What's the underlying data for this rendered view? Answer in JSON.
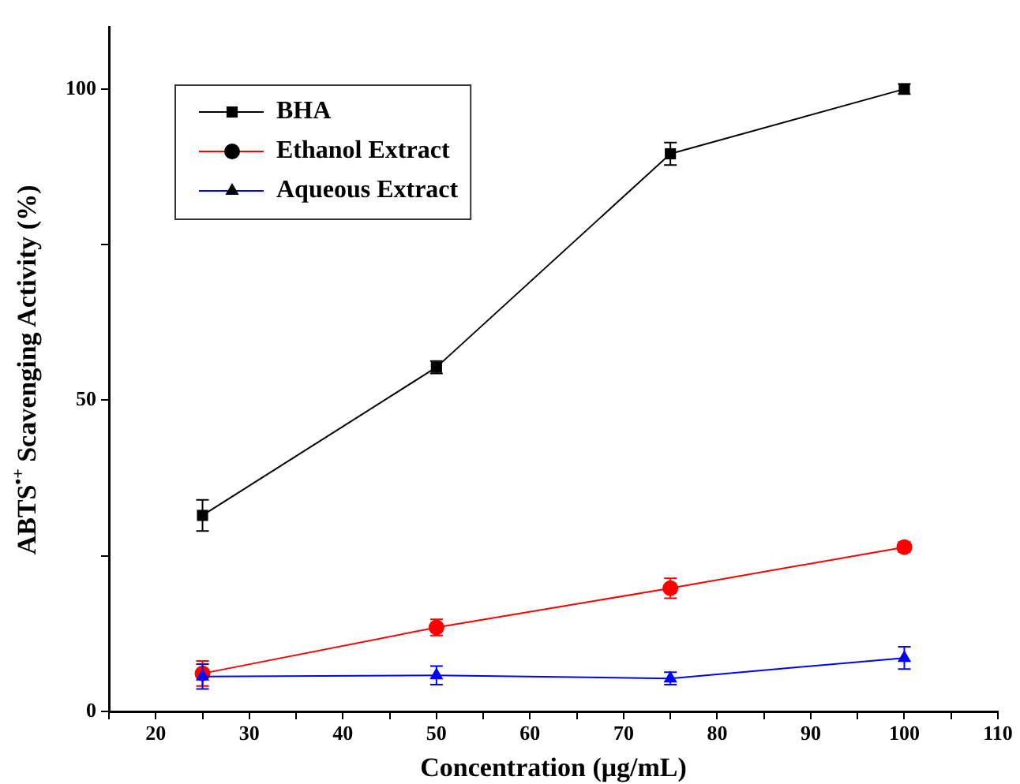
{
  "chart_data": {
    "type": "line",
    "xlabel": "Concentration (μg/mL)",
    "ylabel": "ABTS$^{•+}$ Scavenging Activity (%)",
    "x": [
      25,
      50,
      75,
      100
    ],
    "series": [
      {
        "name": "BHA",
        "color": "#000000",
        "marker": "square",
        "values": [
          31.5,
          55.3,
          89.6,
          100
        ],
        "errors": [
          2.5,
          1,
          1.8,
          0.8
        ]
      },
      {
        "name": "Ethanol Extract",
        "color": "#ff0000",
        "marker": "circle",
        "values": [
          6.1,
          13.5,
          19.8,
          26.4
        ],
        "errors": [
          2,
          1.3,
          1.6,
          0.8
        ]
      },
      {
        "name": "Aqueous Extract",
        "color": "#0000ff",
        "marker": "triangle",
        "values": [
          5.6,
          5.8,
          5.3,
          8.6
        ],
        "errors": [
          2,
          1.5,
          1,
          1.8
        ]
      }
    ],
    "xlim": [
      15,
      110
    ],
    "xticks": [
      {
        "value": 15,
        "label": null
      },
      20,
      {
        "value": 25,
        "label": null
      },
      30,
      {
        "value": 35,
        "label": null
      },
      40,
      {
        "value": 45,
        "label": null
      },
      50,
      {
        "value": 55,
        "label": null
      },
      60,
      {
        "value": 65,
        "label": null
      },
      70,
      {
        "value": 75,
        "label": null
      },
      80,
      {
        "value": 85,
        "label": null
      },
      90,
      {
        "value": 95,
        "label": null
      },
      100,
      {
        "value": 105,
        "label": null
      },
      110
    ],
    "ylim": [
      0,
      110
    ],
    "yticks": [
      0,
      {
        "value": 25,
        "label": null
      },
      50,
      {
        "value": 75,
        "label": null
      },
      100
    ],
    "legend": "top left",
    "grid": false,
    "line_style": "solid"
  }
}
